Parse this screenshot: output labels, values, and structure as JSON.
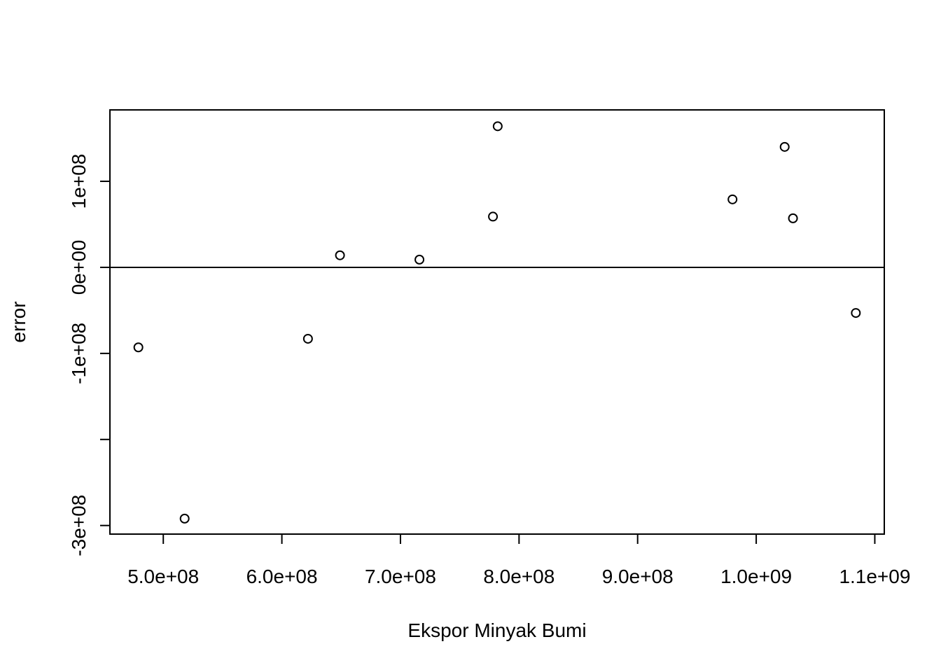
{
  "chart_data": {
    "type": "scatter",
    "title": "",
    "xlabel": "Ekspor Minyak Bumi",
    "ylabel": "error",
    "xlim": [
      455000000,
      1108000000
    ],
    "ylim": [
      -310000000,
      183000000
    ],
    "x_ticks": [
      {
        "value": 500000000,
        "label": "5.0e+08"
      },
      {
        "value": 600000000,
        "label": "6.0e+08"
      },
      {
        "value": 700000000,
        "label": "7.0e+08"
      },
      {
        "value": 800000000,
        "label": "8.0e+08"
      },
      {
        "value": 900000000,
        "label": "9.0e+08"
      },
      {
        "value": 1000000000,
        "label": "1.0e+09"
      },
      {
        "value": 1100000000,
        "label": "1.1e+09"
      }
    ],
    "y_ticks": [
      {
        "value": 100000000,
        "label": "1e+08"
      },
      {
        "value": 0,
        "label": "0e+00"
      },
      {
        "value": -100000000,
        "label": "-1e+08"
      },
      {
        "value": -200000000,
        "label": ""
      },
      {
        "value": -300000000,
        "label": "-3e+08"
      }
    ],
    "reference_line_y": 0,
    "grid": false,
    "points": [
      {
        "x": 479000000,
        "y": -93000000
      },
      {
        "x": 518000000,
        "y": -292000000
      },
      {
        "x": 622000000,
        "y": -83000000
      },
      {
        "x": 649000000,
        "y": 14000000
      },
      {
        "x": 716000000,
        "y": 9000000
      },
      {
        "x": 778000000,
        "y": 59000000
      },
      {
        "x": 782000000,
        "y": 164000000
      },
      {
        "x": 980000000,
        "y": 79000000
      },
      {
        "x": 1024000000,
        "y": 140000000
      },
      {
        "x": 1031000000,
        "y": 57000000
      },
      {
        "x": 1084000000,
        "y": -53000000
      }
    ]
  }
}
